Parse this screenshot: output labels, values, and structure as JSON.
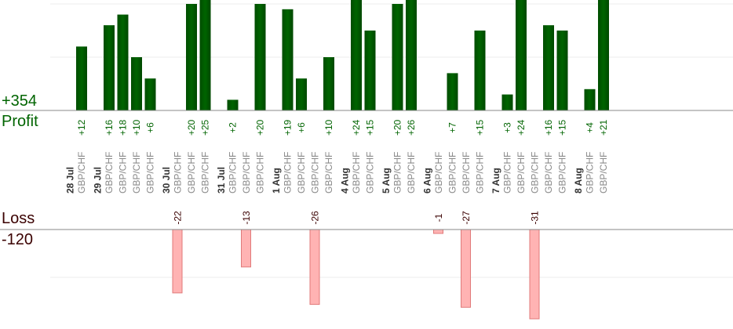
{
  "summary": {
    "profit_total": "+354",
    "profit_label": "Profit",
    "loss_label": "Loss",
    "loss_total": "-120"
  },
  "colors": {
    "profit_bar": "#006400",
    "profit_text": "#006400",
    "loss_bar": "#ffb3b3",
    "loss_bar_edge": "#e07a7a",
    "loss_text": "#3a0000",
    "axis": "#888888",
    "grid": "#eeeeee",
    "instrument_text": "#888888",
    "date_text": "#333333"
  },
  "chart_data": {
    "type": "bar",
    "profit_ylim": [
      0,
      20
    ],
    "loss_ylim": [
      -35,
      0
    ],
    "groups": [
      {
        "date": "28 Jul",
        "trades": [
          {
            "instrument": "GBP/CHF",
            "value": 12
          }
        ]
      },
      {
        "date": "29 Jul",
        "trades": [
          {
            "instrument": "GBP/CHF",
            "value": 16
          },
          {
            "instrument": "GBP/CHF",
            "value": 18
          },
          {
            "instrument": "GBP/CHF",
            "value": 10
          },
          {
            "instrument": "GBP/CHF",
            "value": 6
          }
        ]
      },
      {
        "date": "30 Jul",
        "trades": [
          {
            "instrument": "GBP/CHF",
            "value": -22
          },
          {
            "instrument": "GBP/CHF",
            "value": 20
          },
          {
            "instrument": "GBP/CHF",
            "value": 25
          }
        ]
      },
      {
        "date": "31 Jul",
        "trades": [
          {
            "instrument": "GBP/CHF",
            "value": 2
          },
          {
            "instrument": "GBP/CHF",
            "value": -13
          },
          {
            "instrument": "GBP/CHF",
            "value": 20
          }
        ]
      },
      {
        "date": "1 Aug",
        "trades": [
          {
            "instrument": "GBP/CHF",
            "value": 19
          },
          {
            "instrument": "GBP/CHF",
            "value": 6
          },
          {
            "instrument": "GBP/CHF",
            "value": -26
          },
          {
            "instrument": "GBP/CHF",
            "value": 10
          }
        ]
      },
      {
        "date": "4 Aug",
        "trades": [
          {
            "instrument": "GBP/CHF",
            "value": 24
          },
          {
            "instrument": "GBP/CHF",
            "value": 15
          }
        ]
      },
      {
        "date": "5 Aug",
        "trades": [
          {
            "instrument": "GBP/CHF",
            "value": 20
          },
          {
            "instrument": "GBP/CHF",
            "value": 26
          }
        ]
      },
      {
        "date": "6 Aug",
        "trades": [
          {
            "instrument": "GBP/CHF",
            "value": -1
          },
          {
            "instrument": "GBP/CHF",
            "value": 7
          },
          {
            "instrument": "GBP/CHF",
            "value": -27
          },
          {
            "instrument": "GBP/CHF",
            "value": 15
          }
        ]
      },
      {
        "date": "7 Aug",
        "trades": [
          {
            "instrument": "GBP/CHF",
            "value": 3
          },
          {
            "instrument": "GBP/CHF",
            "value": 24
          },
          {
            "instrument": "GBP/CHF",
            "value": -31
          },
          {
            "instrument": "GBP/CHF",
            "value": 16
          },
          {
            "instrument": "GBP/CHF",
            "value": 15
          }
        ]
      },
      {
        "date": "8 Aug",
        "trades": [
          {
            "instrument": "GBP/CHF",
            "value": 4
          },
          {
            "instrument": "GBP/CHF",
            "value": 21
          }
        ]
      }
    ]
  }
}
